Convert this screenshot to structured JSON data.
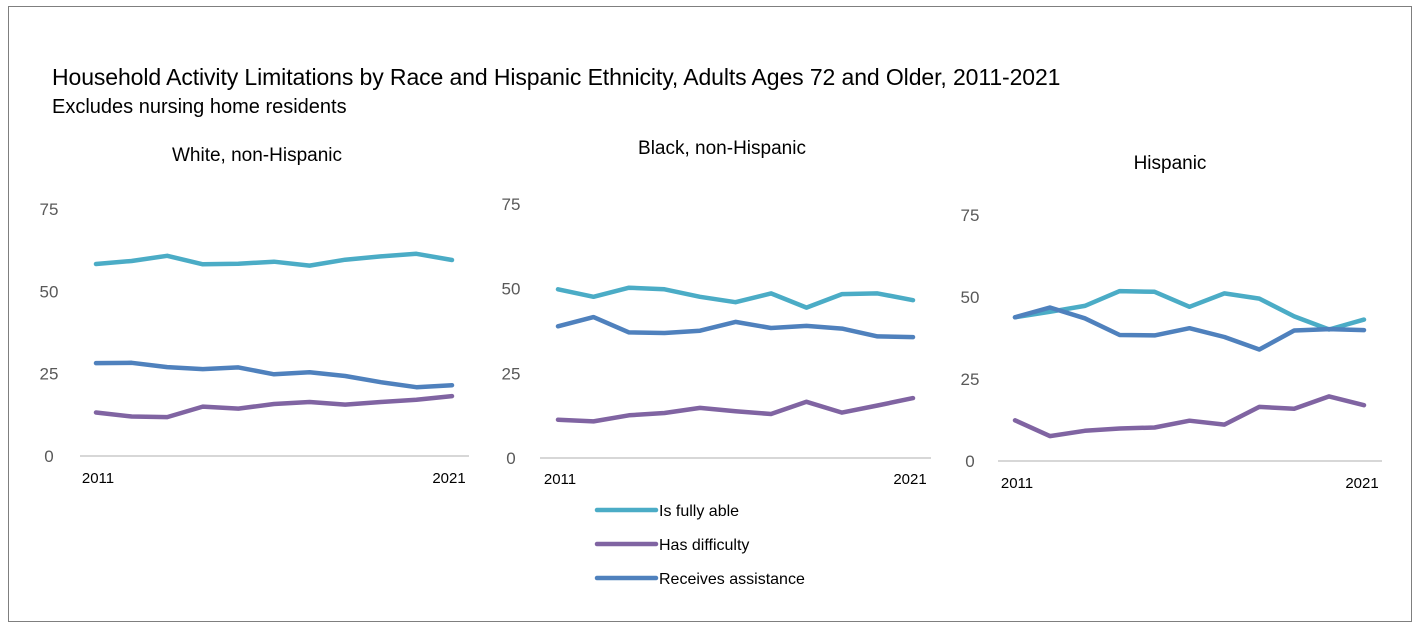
{
  "header": {
    "title": "Household Activity Limitations by Race and Hispanic Ethnicity, Adults Ages 72 and Older, 2011-2021",
    "subtitle": "Excludes nursing home residents"
  },
  "colors": {
    "fully_able": "#4BACC6",
    "difficulty": "#8064A2",
    "assistance": "#4F81BD",
    "axis": "#bfbfbf"
  },
  "chart_data": [
    {
      "type": "line",
      "title": "White, non-Hispanic",
      "x": [
        2011,
        2012,
        2013,
        2014,
        2015,
        2016,
        2017,
        2018,
        2019,
        2020,
        2021
      ],
      "x_tick_labels": [
        "2011",
        "2021"
      ],
      "ylim": [
        0,
        75
      ],
      "y_ticks": [
        0,
        25,
        50,
        75
      ],
      "series": [
        {
          "name": "Is fully able",
          "values": [
            58.3,
            59.2,
            60.8,
            58.2,
            58.4,
            59.0,
            57.8,
            59.6,
            60.6,
            61.4,
            59.5
          ]
        },
        {
          "name": "Has difficulty",
          "values": [
            13.2,
            12.0,
            11.8,
            15.0,
            14.4,
            15.8,
            16.4,
            15.6,
            16.4,
            17.1,
            18.2
          ]
        },
        {
          "name": "Receives assistance",
          "values": [
            28.2,
            28.3,
            27.0,
            26.4,
            26.9,
            24.8,
            25.4,
            24.3,
            22.4,
            20.9,
            21.5
          ]
        }
      ]
    },
    {
      "type": "line",
      "title": "Black, non-Hispanic",
      "x": [
        2011,
        2012,
        2013,
        2014,
        2015,
        2016,
        2017,
        2018,
        2019,
        2020,
        2021
      ],
      "x_tick_labels": [
        "2011",
        "2021"
      ],
      "ylim": [
        0,
        75
      ],
      "y_ticks": [
        0,
        25,
        50,
        75
      ],
      "series": [
        {
          "name": "Is fully able",
          "values": [
            49.8,
            47.6,
            50.3,
            49.8,
            47.6,
            46.0,
            48.6,
            44.4,
            48.4,
            48.6,
            46.6
          ]
        },
        {
          "name": "Has difficulty",
          "values": [
            11.3,
            10.8,
            12.6,
            13.3,
            14.8,
            13.8,
            13.0,
            16.6,
            13.4,
            15.5,
            17.7
          ]
        },
        {
          "name": "Receives assistance",
          "values": [
            38.9,
            41.6,
            37.1,
            36.9,
            37.6,
            40.2,
            38.4,
            39.0,
            38.2,
            35.9,
            35.7
          ]
        }
      ]
    },
    {
      "type": "line",
      "title": "Hispanic",
      "x": [
        2011,
        2012,
        2013,
        2014,
        2015,
        2016,
        2017,
        2018,
        2019,
        2020,
        2021
      ],
      "x_tick_labels": [
        "2011",
        "2021"
      ],
      "ylim": [
        0,
        75
      ],
      "y_ticks": [
        0,
        25,
        50,
        75
      ],
      "series": [
        {
          "name": "Is fully able",
          "values": [
            43.8,
            45.5,
            47.3,
            51.8,
            51.6,
            47.0,
            51.1,
            49.5,
            44.1,
            40.1,
            43.1
          ]
        },
        {
          "name": "Has difficulty",
          "values": [
            12.4,
            7.6,
            9.2,
            9.9,
            10.2,
            12.3,
            11.1,
            16.5,
            15.9,
            19.7,
            17.0
          ]
        },
        {
          "name": "Receives assistance",
          "values": [
            43.8,
            46.8,
            43.5,
            38.4,
            38.3,
            40.5,
            37.8,
            34.0,
            39.8,
            40.2,
            39.9
          ]
        }
      ]
    }
  ],
  "legend": {
    "items": [
      {
        "label": "Is fully able"
      },
      {
        "label": "Has difficulty"
      },
      {
        "label": "Receives assistance"
      }
    ]
  }
}
